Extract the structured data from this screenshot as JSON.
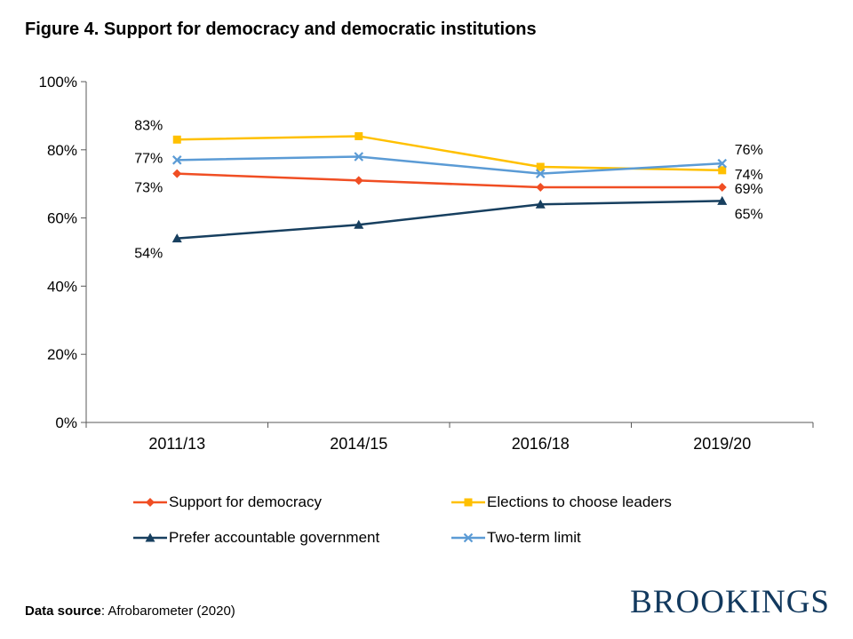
{
  "chart_data": {
    "type": "line",
    "title": "Figure 4. Support for democracy and democratic institutions",
    "categories": [
      "2011/13",
      "2014/15",
      "2016/18",
      "2019/20"
    ],
    "series": [
      {
        "name": "Support for democracy",
        "marker": "diamond",
        "color": "#F04E23",
        "values": [
          73,
          71,
          69,
          69
        ],
        "first_label": "73%",
        "last_label": "69%"
      },
      {
        "name": "Elections to choose leaders",
        "marker": "square",
        "color": "#FFC000",
        "values": [
          83,
          84,
          75,
          74
        ],
        "first_label": "83%",
        "last_label": "74%"
      },
      {
        "name": "Prefer accountable government",
        "marker": "triangle",
        "color": "#173F5F",
        "values": [
          54,
          58,
          64,
          65
        ],
        "first_label": "54%",
        "last_label": "65%"
      },
      {
        "name": "Two-term limit",
        "marker": "x",
        "color": "#5B9BD5",
        "values": [
          77,
          78,
          73,
          76
        ],
        "first_label": "77%",
        "last_label": "76%"
      }
    ],
    "ylim": [
      0,
      100
    ],
    "ytick_step": 20,
    "ytick_labels": [
      "0%",
      "20%",
      "40%",
      "60%",
      "80%",
      "100%"
    ],
    "grid": false,
    "legend_position": "bottom"
  },
  "footer": {
    "source_bold": "Data source",
    "source_rest": ": Afrobarometer (2020)",
    "brand": "BROOKINGS"
  },
  "colors": {
    "axis": "#595959",
    "text": "#000000",
    "brand_navy": "#12395E"
  }
}
